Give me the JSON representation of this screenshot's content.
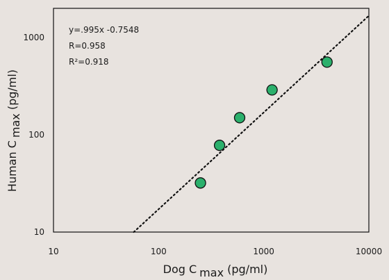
{
  "chart_data": {
    "type": "scatter",
    "x_scale": "log",
    "y_scale": "log",
    "xlim": [
      10,
      10000
    ],
    "ylim": [
      10,
      2000
    ],
    "x_ticks": [
      "10",
      "100",
      "1000",
      "10000"
    ],
    "y_ticks": [
      "10",
      "100",
      "1000"
    ],
    "xlabel": "Dog C max (pg/ml)",
    "xlabel_parts": {
      "main": "Dog C",
      "sub": "max",
      "rest": " (pg/ml)"
    },
    "ylabel": "Human C max (pg/ml)",
    "ylabel_parts": {
      "main": "Human C",
      "sub": "max",
      "rest": " (pg/ml)"
    },
    "annotations": [
      "y=.995x -0.7548",
      "R=0.958",
      "R²=0.918"
    ],
    "points": [
      {
        "x": 250,
        "y": 32
      },
      {
        "x": 380,
        "y": 78
      },
      {
        "x": 590,
        "y": 150
      },
      {
        "x": 1200,
        "y": 290
      },
      {
        "x": 4000,
        "y": 560
      }
    ],
    "fit_line": {
      "slope": 0.995,
      "intercept": -0.7548
    },
    "grid": false,
    "colors": {
      "point_fill": "#2bb06c",
      "point_stroke": "#111111",
      "background": "#e8e3df",
      "line": "#111111"
    }
  }
}
